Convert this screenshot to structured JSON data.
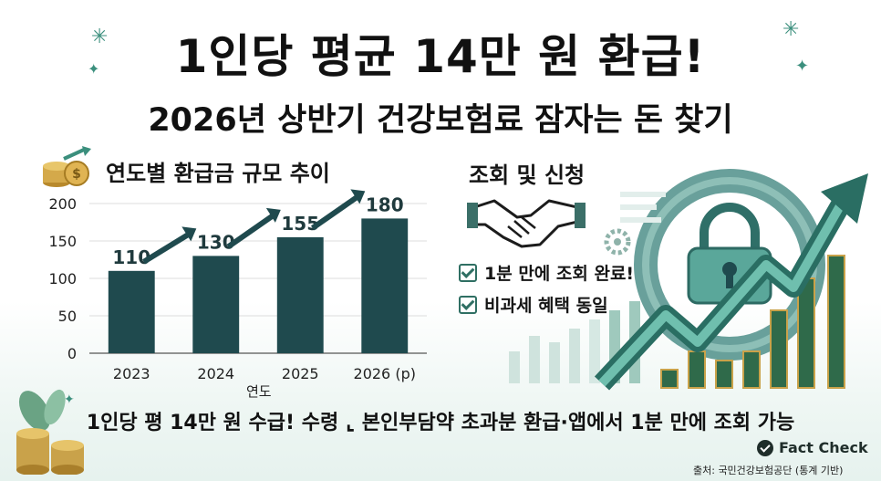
{
  "title": "1인당 평균 14만 원 환급!",
  "subtitle": "2026년 상반기 건강보험료 잠자는 돈 찾기",
  "chart_data": {
    "type": "bar",
    "title": "연도별 환급금 규모 추이",
    "xlabel": "연도",
    "ylabel": "",
    "categories": [
      "2023",
      "2024",
      "2025",
      "2026 (p)"
    ],
    "values": [
      110,
      130,
      155,
      180
    ],
    "data_labels": [
      "110",
      "130",
      "155",
      "180"
    ],
    "ylim": [
      0,
      200
    ],
    "yticks": [
      "0",
      "50",
      "100",
      "150",
      "200"
    ],
    "bar_color": "#1f4a4e",
    "grid": true
  },
  "inquiry": {
    "title": "조회 및 신청",
    "items": [
      "1분 만에 조회 완료!",
      "비과세 혜택 동일"
    ]
  },
  "banner": "1인당 평 14만 원 수급! 수령 ⌞ 본인부담약 초과분 환급·앱에서 1분 만에 조회 가능",
  "badge": "Fact Check",
  "source": "출처: 국민건강보험공단 (통계 기반)",
  "colors": {
    "accent": "#3b8f7d",
    "dark": "#1f4a4e",
    "gold": "#c9a24a"
  },
  "icons": [
    "sparkle-icon",
    "coin-stack-icon",
    "growth-arrow-icon",
    "handshake-icon",
    "check-icon",
    "lock-icon",
    "gear-icon",
    "fact-check-icon"
  ]
}
